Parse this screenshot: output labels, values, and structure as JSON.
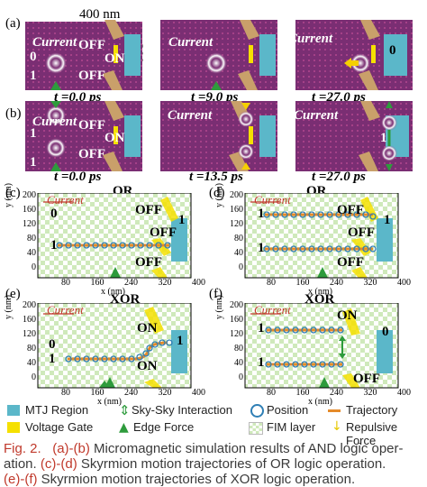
{
  "panel_letters": {
    "a": "(a)",
    "b": "(b)",
    "c": "(c)",
    "d": "(d)",
    "e": "(e)",
    "f": "(f)"
  },
  "dims": {
    "width": "400 nm",
    "height": "200 nm"
  },
  "current": "Current",
  "off": "OFF",
  "on": "ON",
  "one": "1",
  "zero": "0",
  "times": {
    "t0": "t =0.0 ps",
    "t9": "t =9.0 ps",
    "t27": "t =27.0 ps",
    "t135": "t =13.5 ps"
  },
  "titles": {
    "or": "OR",
    "xor": "XOR"
  },
  "axes": {
    "ylabel": "y (nm)",
    "xlabel": "x (nm)",
    "yticks": [
      "200",
      "160",
      "120",
      "80",
      "40",
      "0"
    ],
    "xticks": [
      "80",
      "160",
      "240",
      "320",
      "400"
    ]
  },
  "legend": {
    "mtj": "MTJ Region",
    "skysky": "Sky-Sky Interaction",
    "position": "Position",
    "trajectory": "Trajectory",
    "gate": "Voltage Gate",
    "edge": "Edge Force",
    "fim": "FIM layer",
    "repulsive": "Repulsive Force"
  },
  "caption": {
    "fig": "Fig. 2.",
    "ab": "(a)-(b)",
    "l1": " Micromagnetic simulation results of AND logic oper-",
    "l2a": "ation.",
    "cd": "(c)-(d)",
    "l2b": " Skyrmion motion trajectories of OR logic operation.",
    "ef": "(e)-(f)",
    "l3": " Skyrmion motion trajectories of XOR logic operation."
  },
  "colors": {
    "sim_bg": "#7a2e73",
    "mtj": "#5bb7c9",
    "gate": "#f5e000",
    "trajectory": "#e58a2a",
    "position": "#2f7fb5",
    "edge": "#2e9b3c",
    "fim_a": "#c8e6b0",
    "fim_b": "#ffffff",
    "current": "#c0392b"
  }
}
